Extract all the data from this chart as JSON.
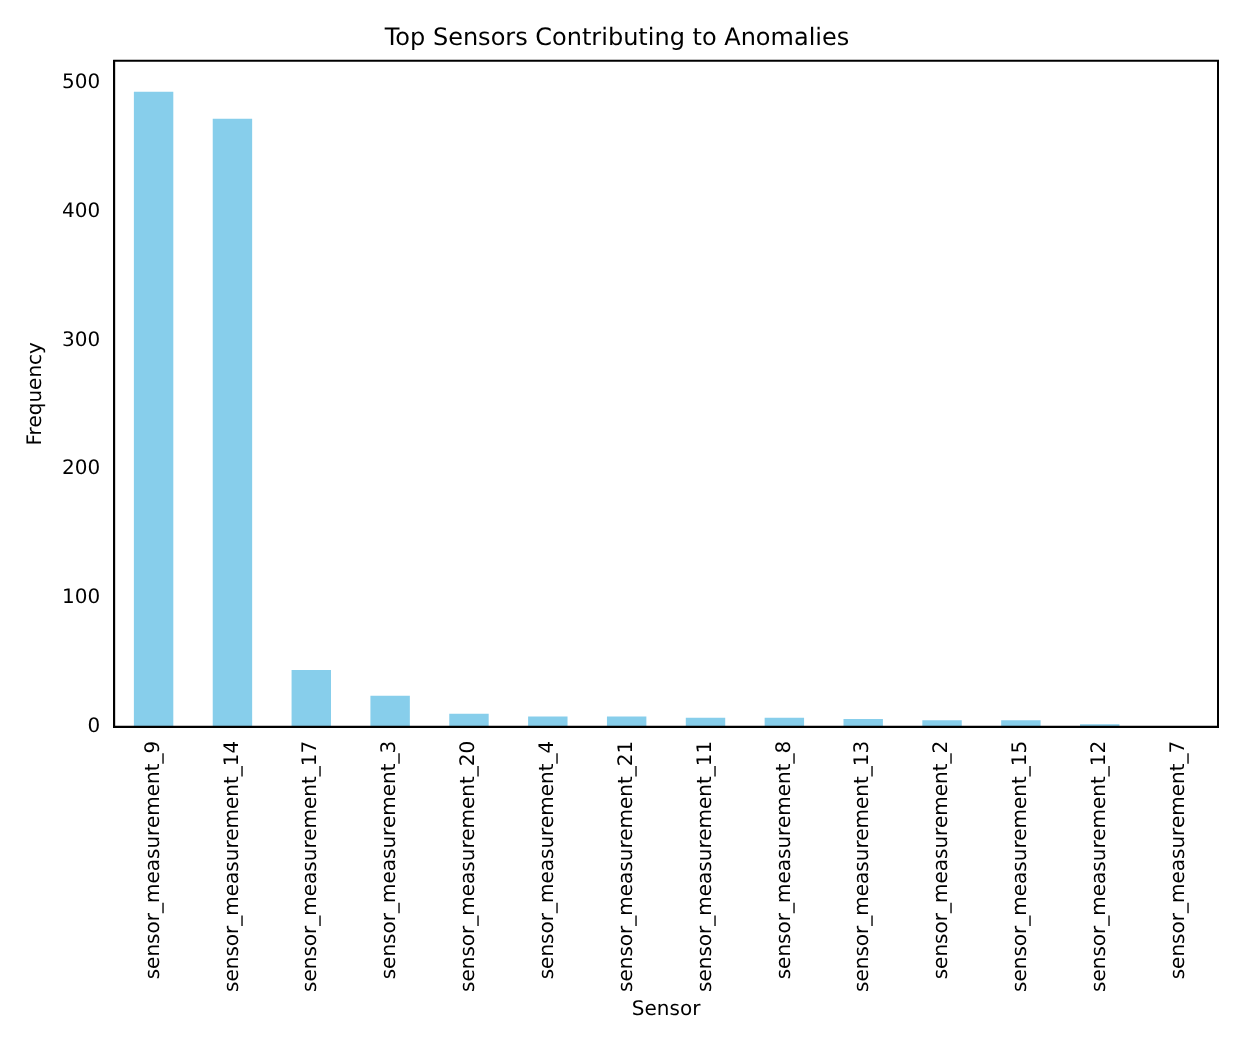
{
  "chart_data": {
    "type": "bar",
    "title": "Top Sensors Contributing to Anomalies",
    "xlabel": "Sensor",
    "ylabel": "Frequency",
    "categories": [
      "sensor_measurement_9",
      "sensor_measurement_14",
      "sensor_measurement_17",
      "sensor_measurement_3",
      "sensor_measurement_20",
      "sensor_measurement_4",
      "sensor_measurement_21",
      "sensor_measurement_11",
      "sensor_measurement_8",
      "sensor_measurement_13",
      "sensor_measurement_2",
      "sensor_measurement_15",
      "sensor_measurement_12",
      "sensor_measurement_7"
    ],
    "values": [
      493,
      472,
      44,
      24,
      10,
      8,
      8,
      7,
      7,
      6,
      5,
      5,
      2,
      0
    ],
    "color": "#87ceeb",
    "ylim": [
      0,
      517
    ],
    "yticks": [
      0,
      100,
      200,
      300,
      400,
      500
    ],
    "grid": false,
    "legend": false
  }
}
